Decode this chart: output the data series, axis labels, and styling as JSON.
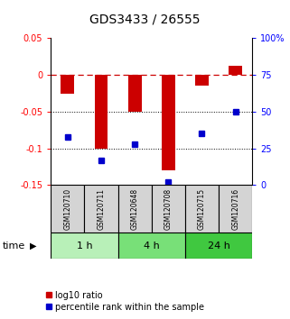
{
  "title": "GDS3433 / 26555",
  "samples": [
    "GSM120710",
    "GSM120711",
    "GSM120648",
    "GSM120708",
    "GSM120715",
    "GSM120716"
  ],
  "time_groups": [
    {
      "label": "1 h",
      "color": "#b8f0b8",
      "start": 0,
      "end": 1
    },
    {
      "label": "4 h",
      "color": "#78e078",
      "start": 2,
      "end": 3
    },
    {
      "label": "24 h",
      "color": "#40c840",
      "start": 4,
      "end": 5
    }
  ],
  "log10_ratio": [
    -0.025,
    -0.1,
    -0.05,
    -0.13,
    -0.015,
    0.013
  ],
  "percentile_rank": [
    33,
    17,
    28,
    2,
    35,
    50
  ],
  "ylim_left": [
    -0.15,
    0.05
  ],
  "ylim_right": [
    0,
    100
  ],
  "left_ticks": [
    0.05,
    0.0,
    -0.05,
    -0.1,
    -0.15
  ],
  "left_tick_labels": [
    "0.05",
    "0",
    "-0.05",
    "-0.1",
    "-0.15"
  ],
  "right_ticks": [
    100,
    75,
    50,
    25,
    0
  ],
  "right_tick_labels": [
    "100%",
    "75",
    "50",
    "25",
    "0"
  ],
  "bar_color": "#cc0000",
  "dot_color": "#0000cc",
  "background_color": "#ffffff",
  "dashed_zero_color": "#cc0000",
  "title_fontsize": 10,
  "tick_fontsize": 7,
  "sample_fontsize": 5.5,
  "time_fontsize": 8,
  "legend_fontsize": 7
}
